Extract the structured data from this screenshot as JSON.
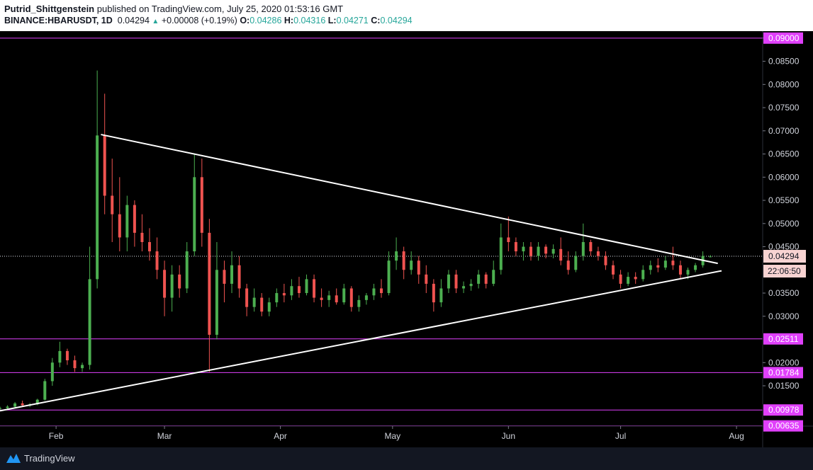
{
  "header": {
    "author": "Putrid_Shittgenstein",
    "published": "published on TradingView.com, July 25, 2020 01:53:16 GMT",
    "symbol": "BINANCE:HBARUSDT, 1D",
    "last": "0.04294",
    "change": "+0.00008 (+0.19%)",
    "o_label": "O:",
    "o_value": "0.04286",
    "h_label": "H:",
    "h_value": "0.04316",
    "l_label": "L:",
    "l_value": "0.04271",
    "c_label": "C:",
    "c_value": "0.04294"
  },
  "footer": {
    "brand": "TradingView"
  },
  "colors": {
    "up": "#26a69a",
    "up_candle": "#4caf50",
    "down_candle": "#ef5350",
    "level_line": "#e040fb",
    "trendline": "#ffffff",
    "axis_text": "#d1d4dc",
    "background": "#000000"
  },
  "chart_data": {
    "type": "candlestick",
    "symbol": "BINANCE:HBARUSDT",
    "interval": "1D",
    "x_axis": {
      "labels": [
        "Feb",
        "Mar",
        "Apr",
        "May",
        "Jun",
        "Jul",
        "Aug"
      ],
      "range": [
        "2020-01-17",
        "2020-08-08"
      ]
    },
    "y_axis": {
      "ticks": [
        "0.01500",
        "0.02000",
        "0.03000",
        "0.03500",
        "0.04500",
        "0.05000",
        "0.05500",
        "0.06000",
        "0.06500",
        "0.07000",
        "0.07500",
        "0.08000",
        "0.08500",
        "0.09000"
      ],
      "range": [
        0.0063,
        0.0915
      ],
      "scale": "linear"
    },
    "price_label": {
      "value": "0.04294",
      "countdown": "22:06:50"
    },
    "horizontal_levels": [
      {
        "value": "0.09000",
        "label": "0.09000"
      },
      {
        "value": "0.02511",
        "label": "0.02511"
      },
      {
        "value": "0.01784",
        "label": "0.01784"
      },
      {
        "value": "0.00978",
        "label": "0.00978"
      },
      {
        "value": "0.00635",
        "label": "0.00635"
      }
    ],
    "trendlines": [
      {
        "name": "resistance",
        "from": {
          "date": "2020-02-13",
          "value": 0.0692
        },
        "to": {
          "date": "2020-07-27",
          "value": 0.0414
        }
      },
      {
        "name": "support",
        "from": {
          "date": "2020-01-17",
          "value": 0.0096
        },
        "to": {
          "date": "2020-07-28",
          "value": 0.0398
        }
      }
    ],
    "candles": [
      {
        "d": "2020-01-17",
        "o": 0.01,
        "h": 0.0105,
        "l": 0.0098,
        "c": 0.0102
      },
      {
        "d": "2020-01-19",
        "o": 0.0102,
        "h": 0.0108,
        "l": 0.01,
        "c": 0.0105
      },
      {
        "d": "2020-01-21",
        "o": 0.0105,
        "h": 0.0115,
        "l": 0.0103,
        "c": 0.0112
      },
      {
        "d": "2020-01-23",
        "o": 0.0112,
        "h": 0.0118,
        "l": 0.0106,
        "c": 0.0108
      },
      {
        "d": "2020-01-25",
        "o": 0.0108,
        "h": 0.0113,
        "l": 0.0104,
        "c": 0.011
      },
      {
        "d": "2020-01-27",
        "o": 0.011,
        "h": 0.0122,
        "l": 0.0108,
        "c": 0.012
      },
      {
        "d": "2020-01-29",
        "o": 0.012,
        "h": 0.0165,
        "l": 0.0118,
        "c": 0.016
      },
      {
        "d": "2020-01-31",
        "o": 0.016,
        "h": 0.021,
        "l": 0.015,
        "c": 0.02
      },
      {
        "d": "2020-02-02",
        "o": 0.02,
        "h": 0.0245,
        "l": 0.019,
        "c": 0.0225
      },
      {
        "d": "2020-02-04",
        "o": 0.0225,
        "h": 0.023,
        "l": 0.0195,
        "c": 0.0205
      },
      {
        "d": "2020-02-06",
        "o": 0.0205,
        "h": 0.0215,
        "l": 0.018,
        "c": 0.0188
      },
      {
        "d": "2020-02-08",
        "o": 0.0188,
        "h": 0.02,
        "l": 0.018,
        "c": 0.0195
      },
      {
        "d": "2020-02-10",
        "o": 0.0195,
        "h": 0.045,
        "l": 0.0185,
        "c": 0.038
      },
      {
        "d": "2020-02-12",
        "o": 0.038,
        "h": 0.083,
        "l": 0.036,
        "c": 0.069
      },
      {
        "d": "2020-02-14",
        "o": 0.069,
        "h": 0.078,
        "l": 0.052,
        "c": 0.056
      },
      {
        "d": "2020-02-16",
        "o": 0.056,
        "h": 0.064,
        "l": 0.046,
        "c": 0.052
      },
      {
        "d": "2020-02-18",
        "o": 0.052,
        "h": 0.06,
        "l": 0.044,
        "c": 0.047
      },
      {
        "d": "2020-02-20",
        "o": 0.047,
        "h": 0.056,
        "l": 0.044,
        "c": 0.054
      },
      {
        "d": "2020-02-22",
        "o": 0.054,
        "h": 0.055,
        "l": 0.045,
        "c": 0.048
      },
      {
        "d": "2020-02-24",
        "o": 0.048,
        "h": 0.052,
        "l": 0.044,
        "c": 0.046
      },
      {
        "d": "2020-02-26",
        "o": 0.046,
        "h": 0.049,
        "l": 0.042,
        "c": 0.044
      },
      {
        "d": "2020-02-28",
        "o": 0.044,
        "h": 0.047,
        "l": 0.038,
        "c": 0.04
      },
      {
        "d": "2020-03-01",
        "o": 0.04,
        "h": 0.042,
        "l": 0.03,
        "c": 0.034
      },
      {
        "d": "2020-03-03",
        "o": 0.034,
        "h": 0.041,
        "l": 0.031,
        "c": 0.039
      },
      {
        "d": "2020-03-05",
        "o": 0.039,
        "h": 0.041,
        "l": 0.034,
        "c": 0.036
      },
      {
        "d": "2020-03-07",
        "o": 0.036,
        "h": 0.046,
        "l": 0.035,
        "c": 0.044
      },
      {
        "d": "2020-03-09",
        "o": 0.044,
        "h": 0.065,
        "l": 0.043,
        "c": 0.06
      },
      {
        "d": "2020-03-11",
        "o": 0.06,
        "h": 0.064,
        "l": 0.045,
        "c": 0.048
      },
      {
        "d": "2020-03-13",
        "o": 0.048,
        "h": 0.051,
        "l": 0.018,
        "c": 0.026
      },
      {
        "d": "2020-03-15",
        "o": 0.026,
        "h": 0.046,
        "l": 0.025,
        "c": 0.04
      },
      {
        "d": "2020-03-17",
        "o": 0.04,
        "h": 0.042,
        "l": 0.033,
        "c": 0.037
      },
      {
        "d": "2020-03-19",
        "o": 0.037,
        "h": 0.044,
        "l": 0.035,
        "c": 0.041
      },
      {
        "d": "2020-03-21",
        "o": 0.041,
        "h": 0.043,
        "l": 0.034,
        "c": 0.036
      },
      {
        "d": "2020-03-23",
        "o": 0.036,
        "h": 0.037,
        "l": 0.03,
        "c": 0.032
      },
      {
        "d": "2020-03-25",
        "o": 0.032,
        "h": 0.036,
        "l": 0.031,
        "c": 0.034
      },
      {
        "d": "2020-03-27",
        "o": 0.034,
        "h": 0.035,
        "l": 0.03,
        "c": 0.031
      },
      {
        "d": "2020-03-29",
        "o": 0.031,
        "h": 0.034,
        "l": 0.03,
        "c": 0.033
      },
      {
        "d": "2020-03-31",
        "o": 0.033,
        "h": 0.036,
        "l": 0.032,
        "c": 0.035
      },
      {
        "d": "2020-04-02",
        "o": 0.035,
        "h": 0.037,
        "l": 0.033,
        "c": 0.0345
      },
      {
        "d": "2020-04-04",
        "o": 0.0345,
        "h": 0.038,
        "l": 0.0335,
        "c": 0.0365
      },
      {
        "d": "2020-04-06",
        "o": 0.0365,
        "h": 0.0385,
        "l": 0.034,
        "c": 0.035
      },
      {
        "d": "2020-04-08",
        "o": 0.035,
        "h": 0.039,
        "l": 0.0345,
        "c": 0.038
      },
      {
        "d": "2020-04-10",
        "o": 0.038,
        "h": 0.039,
        "l": 0.033,
        "c": 0.034
      },
      {
        "d": "2020-04-12",
        "o": 0.034,
        "h": 0.036,
        "l": 0.032,
        "c": 0.0335
      },
      {
        "d": "2020-04-14",
        "o": 0.0335,
        "h": 0.0355,
        "l": 0.032,
        "c": 0.0345
      },
      {
        "d": "2020-04-16",
        "o": 0.0345,
        "h": 0.036,
        "l": 0.0325,
        "c": 0.033
      },
      {
        "d": "2020-04-18",
        "o": 0.033,
        "h": 0.037,
        "l": 0.0325,
        "c": 0.036
      },
      {
        "d": "2020-04-20",
        "o": 0.036,
        "h": 0.0365,
        "l": 0.031,
        "c": 0.032
      },
      {
        "d": "2020-04-22",
        "o": 0.032,
        "h": 0.0345,
        "l": 0.031,
        "c": 0.0335
      },
      {
        "d": "2020-04-24",
        "o": 0.0335,
        "h": 0.035,
        "l": 0.0325,
        "c": 0.0345
      },
      {
        "d": "2020-04-26",
        "o": 0.0345,
        "h": 0.037,
        "l": 0.0335,
        "c": 0.036
      },
      {
        "d": "2020-04-28",
        "o": 0.036,
        "h": 0.038,
        "l": 0.034,
        "c": 0.035
      },
      {
        "d": "2020-04-30",
        "o": 0.035,
        "h": 0.044,
        "l": 0.0345,
        "c": 0.042
      },
      {
        "d": "2020-05-02",
        "o": 0.042,
        "h": 0.047,
        "l": 0.04,
        "c": 0.044
      },
      {
        "d": "2020-05-04",
        "o": 0.044,
        "h": 0.045,
        "l": 0.038,
        "c": 0.04
      },
      {
        "d": "2020-05-06",
        "o": 0.04,
        "h": 0.044,
        "l": 0.039,
        "c": 0.042
      },
      {
        "d": "2020-05-08",
        "o": 0.042,
        "h": 0.043,
        "l": 0.037,
        "c": 0.039
      },
      {
        "d": "2020-05-10",
        "o": 0.039,
        "h": 0.041,
        "l": 0.035,
        "c": 0.037
      },
      {
        "d": "2020-05-12",
        "o": 0.037,
        "h": 0.038,
        "l": 0.031,
        "c": 0.033
      },
      {
        "d": "2020-05-14",
        "o": 0.033,
        "h": 0.038,
        "l": 0.032,
        "c": 0.036
      },
      {
        "d": "2020-05-16",
        "o": 0.036,
        "h": 0.04,
        "l": 0.035,
        "c": 0.039
      },
      {
        "d": "2020-05-18",
        "o": 0.039,
        "h": 0.04,
        "l": 0.035,
        "c": 0.036
      },
      {
        "d": "2020-05-20",
        "o": 0.036,
        "h": 0.0375,
        "l": 0.035,
        "c": 0.0365
      },
      {
        "d": "2020-05-22",
        "o": 0.0365,
        "h": 0.038,
        "l": 0.0355,
        "c": 0.037
      },
      {
        "d": "2020-05-24",
        "o": 0.037,
        "h": 0.04,
        "l": 0.036,
        "c": 0.039
      },
      {
        "d": "2020-05-26",
        "o": 0.039,
        "h": 0.0395,
        "l": 0.036,
        "c": 0.037
      },
      {
        "d": "2020-05-28",
        "o": 0.037,
        "h": 0.042,
        "l": 0.0365,
        "c": 0.04
      },
      {
        "d": "2020-05-30",
        "o": 0.04,
        "h": 0.05,
        "l": 0.039,
        "c": 0.047
      },
      {
        "d": "2020-06-01",
        "o": 0.047,
        "h": 0.0515,
        "l": 0.044,
        "c": 0.046
      },
      {
        "d": "2020-06-03",
        "o": 0.046,
        "h": 0.047,
        "l": 0.043,
        "c": 0.044
      },
      {
        "d": "2020-06-05",
        "o": 0.044,
        "h": 0.046,
        "l": 0.042,
        "c": 0.045
      },
      {
        "d": "2020-06-07",
        "o": 0.045,
        "h": 0.046,
        "l": 0.042,
        "c": 0.043
      },
      {
        "d": "2020-06-09",
        "o": 0.043,
        "h": 0.046,
        "l": 0.042,
        "c": 0.045
      },
      {
        "d": "2020-06-11",
        "o": 0.045,
        "h": 0.0455,
        "l": 0.0425,
        "c": 0.0435
      },
      {
        "d": "2020-06-13",
        "o": 0.0435,
        "h": 0.0455,
        "l": 0.0425,
        "c": 0.0445
      },
      {
        "d": "2020-06-15",
        "o": 0.0445,
        "h": 0.047,
        "l": 0.041,
        "c": 0.042
      },
      {
        "d": "2020-06-17",
        "o": 0.042,
        "h": 0.044,
        "l": 0.039,
        "c": 0.04
      },
      {
        "d": "2020-06-19",
        "o": 0.04,
        "h": 0.044,
        "l": 0.0395,
        "c": 0.043
      },
      {
        "d": "2020-06-21",
        "o": 0.043,
        "h": 0.05,
        "l": 0.042,
        "c": 0.046
      },
      {
        "d": "2020-06-23",
        "o": 0.046,
        "h": 0.0465,
        "l": 0.043,
        "c": 0.044
      },
      {
        "d": "2020-06-25",
        "o": 0.044,
        "h": 0.045,
        "l": 0.042,
        "c": 0.043
      },
      {
        "d": "2020-06-27",
        "o": 0.043,
        "h": 0.044,
        "l": 0.04,
        "c": 0.041
      },
      {
        "d": "2020-06-29",
        "o": 0.041,
        "h": 0.042,
        "l": 0.038,
        "c": 0.039
      },
      {
        "d": "2020-07-01",
        "o": 0.039,
        "h": 0.04,
        "l": 0.036,
        "c": 0.037
      },
      {
        "d": "2020-07-03",
        "o": 0.037,
        "h": 0.0395,
        "l": 0.0365,
        "c": 0.0385
      },
      {
        "d": "2020-07-05",
        "o": 0.0385,
        "h": 0.0395,
        "l": 0.037,
        "c": 0.038
      },
      {
        "d": "2020-07-07",
        "o": 0.038,
        "h": 0.041,
        "l": 0.0375,
        "c": 0.04
      },
      {
        "d": "2020-07-09",
        "o": 0.04,
        "h": 0.042,
        "l": 0.039,
        "c": 0.041
      },
      {
        "d": "2020-07-11",
        "o": 0.041,
        "h": 0.0425,
        "l": 0.0395,
        "c": 0.0405
      },
      {
        "d": "2020-07-13",
        "o": 0.0405,
        "h": 0.043,
        "l": 0.04,
        "c": 0.042
      },
      {
        "d": "2020-07-15",
        "o": 0.042,
        "h": 0.045,
        "l": 0.04,
        "c": 0.041
      },
      {
        "d": "2020-07-17",
        "o": 0.041,
        "h": 0.042,
        "l": 0.038,
        "c": 0.039
      },
      {
        "d": "2020-07-19",
        "o": 0.039,
        "h": 0.0405,
        "l": 0.038,
        "c": 0.04
      },
      {
        "d": "2020-07-21",
        "o": 0.04,
        "h": 0.0415,
        "l": 0.0395,
        "c": 0.041
      },
      {
        "d": "2020-07-23",
        "o": 0.041,
        "h": 0.044,
        "l": 0.0405,
        "c": 0.043
      },
      {
        "d": "2020-07-25",
        "o": 0.0429,
        "h": 0.0432,
        "l": 0.0427,
        "c": 0.0429
      }
    ]
  }
}
